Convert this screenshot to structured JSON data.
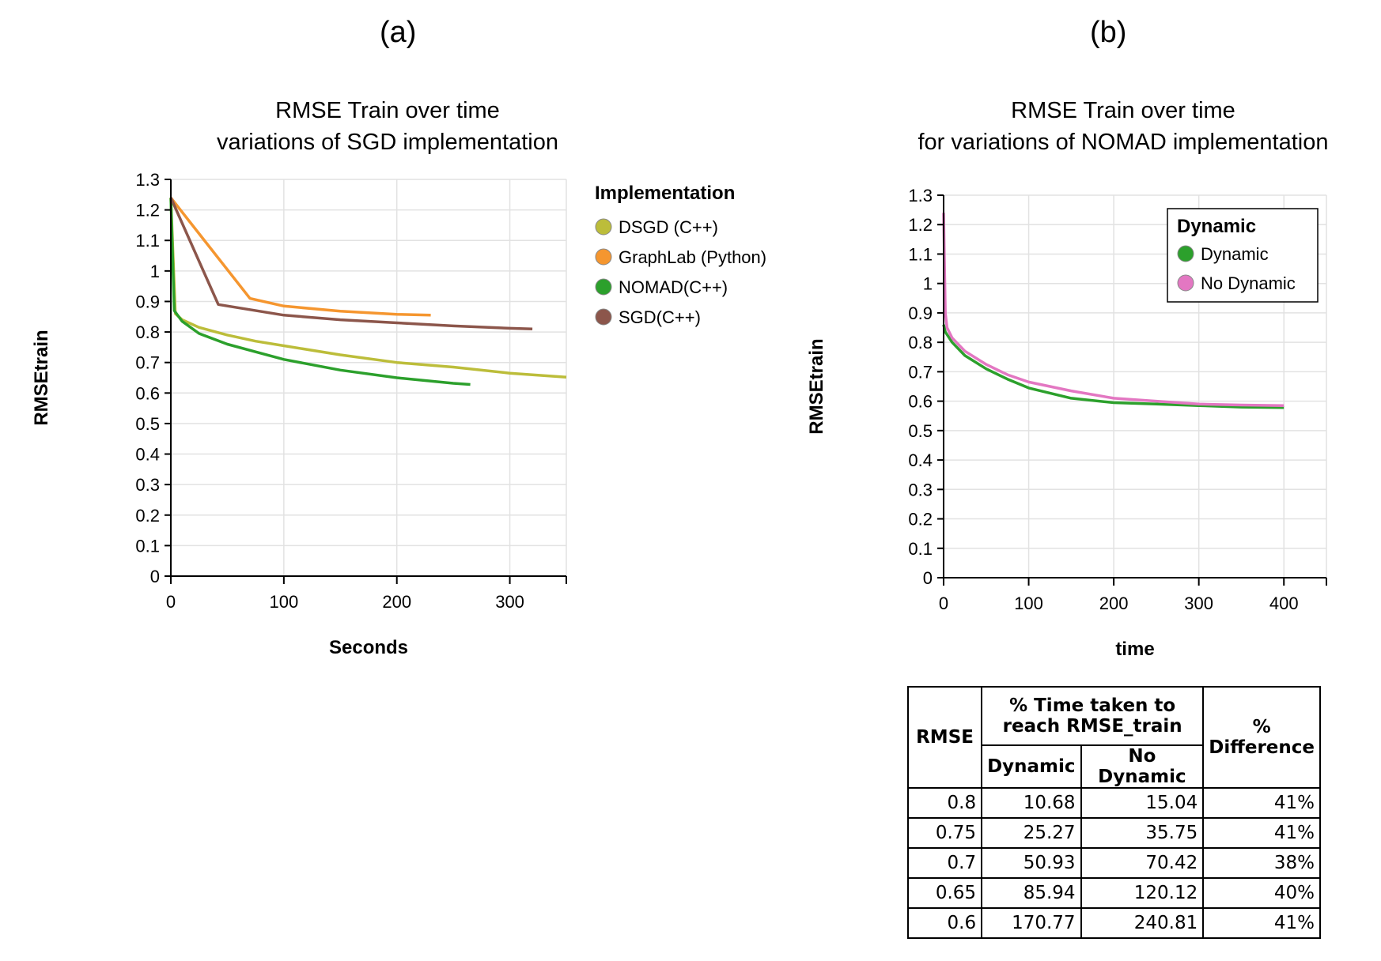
{
  "panels": {
    "a": "(a)",
    "b": "(b)"
  },
  "chart_data": [
    {
      "type": "line",
      "title": "RMSE Train over time",
      "subtitle": "variations of SGD implementation",
      "xlabel": "Seconds",
      "ylabel": "RMSEtrain",
      "xlim": [
        0,
        350
      ],
      "ylim": [
        0,
        1.3
      ],
      "xticks": [
        0,
        100,
        200,
        300
      ],
      "yticks": [
        0,
        0.1,
        0.2,
        0.3,
        0.4,
        0.5,
        0.6,
        0.7,
        0.8,
        0.9,
        1,
        1.1,
        1.2,
        1.3
      ],
      "grid": true,
      "legend": {
        "title": "Implementation",
        "position": "right"
      },
      "series": [
        {
          "name": "DSGD (C++)",
          "color": "#bcbd3a",
          "x": [
            0,
            4,
            10,
            25,
            50,
            75,
            100,
            150,
            200,
            250,
            300,
            350
          ],
          "y": [
            1.24,
            0.86,
            0.84,
            0.815,
            0.79,
            0.77,
            0.755,
            0.725,
            0.7,
            0.685,
            0.665,
            0.652
          ]
        },
        {
          "name": "GraphLab (Python)",
          "color": "#f5962f",
          "x": [
            0,
            70,
            100,
            150,
            200,
            230
          ],
          "y": [
            1.24,
            0.91,
            0.885,
            0.868,
            0.858,
            0.855
          ]
        },
        {
          "name": "NOMAD(C++)",
          "color": "#2ca02c",
          "x": [
            0,
            3,
            10,
            25,
            50,
            75,
            100,
            150,
            200,
            250,
            265
          ],
          "y": [
            1.24,
            0.87,
            0.835,
            0.795,
            0.76,
            0.735,
            0.71,
            0.675,
            0.65,
            0.632,
            0.628
          ]
        },
        {
          "name": "SGD(C++)",
          "color": "#8c564b",
          "x": [
            0,
            42,
            100,
            150,
            200,
            250,
            300,
            320
          ],
          "y": [
            1.24,
            0.89,
            0.855,
            0.84,
            0.83,
            0.82,
            0.812,
            0.81
          ]
        }
      ]
    },
    {
      "type": "line",
      "title": "RMSE Train over time",
      "subtitle": "for variations of NOMAD implementation",
      "xlabel": "time",
      "ylabel": "RMSEtrain",
      "xlim": [
        0,
        450
      ],
      "ylim": [
        0,
        1.3
      ],
      "xticks": [
        0,
        100,
        200,
        300,
        400
      ],
      "yticks": [
        0,
        0.1,
        0.2,
        0.3,
        0.4,
        0.5,
        0.6,
        0.7,
        0.8,
        0.9,
        1,
        1.1,
        1.2,
        1.3
      ],
      "grid": true,
      "legend": {
        "title": "Dynamic",
        "position": "top-right"
      },
      "series": [
        {
          "name": "Dynamic",
          "color": "#2ca02c",
          "x": [
            0,
            2,
            10,
            25,
            50,
            75,
            100,
            150,
            200,
            250,
            300,
            350,
            400
          ],
          "y": [
            0.86,
            0.835,
            0.8,
            0.755,
            0.71,
            0.675,
            0.645,
            0.61,
            0.595,
            0.59,
            0.585,
            0.58,
            0.578
          ]
        },
        {
          "name": "No Dynamic",
          "color": "#e377c2",
          "x": [
            0,
            2,
            4,
            10,
            25,
            50,
            75,
            100,
            150,
            200,
            250,
            300,
            350,
            400
          ],
          "y": [
            1.24,
            0.9,
            0.85,
            0.815,
            0.77,
            0.725,
            0.69,
            0.665,
            0.635,
            0.61,
            0.6,
            0.59,
            0.587,
            0.585
          ]
        }
      ]
    },
    {
      "type": "table",
      "headers": {
        "rmse": "RMSE",
        "time_group": "% Time taken to reach RMSE_train",
        "dynamic": "Dynamic",
        "no_dynamic": "No Dynamic",
        "difference": "% Difference"
      },
      "rows": [
        [
          "0.8",
          "10.68",
          "15.04",
          "41%"
        ],
        [
          "0.75",
          "25.27",
          "35.75",
          "41%"
        ],
        [
          "0.7",
          "50.93",
          "70.42",
          "38%"
        ],
        [
          "0.65",
          "85.94",
          "120.12",
          "40%"
        ],
        [
          "0.6",
          "170.77",
          "240.81",
          "41%"
        ]
      ]
    }
  ]
}
